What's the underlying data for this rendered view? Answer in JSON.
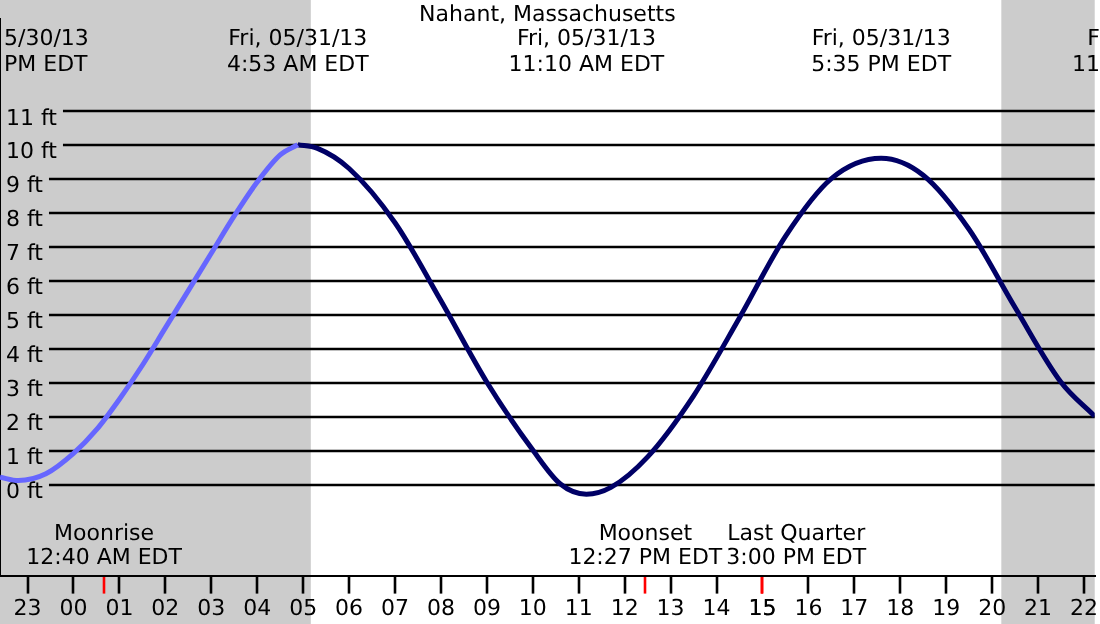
{
  "chart_data": {
    "type": "line",
    "title": "Nahant, Massachusetts",
    "series": [
      {
        "color": "#6666ff",
        "x": [
          "--05-30T22:24",
          "--05-30T22:48",
          "--05-30T23:24",
          "--05-31T00:00",
          "--05-31T00:30",
          "--05-31T01:00",
          "--05-31T01:30",
          "--05-31T02:00",
          "--05-31T02:30",
          "--05-31T03:00",
          "--05-31T03:30",
          "--05-31T04:00",
          "--05-31T04:30",
          "--05-31T04:53"
        ],
        "values": [
          0.2,
          0.1,
          0.3,
          0.9,
          1.6,
          2.5,
          3.5,
          4.6,
          5.7,
          6.8,
          7.9,
          8.9,
          9.7,
          10.0
        ]
      },
      {
        "color": "#000066",
        "x": [
          "--05-31T04:53",
          "--05-31T05:18",
          "--05-31T06:00",
          "--05-31T07:00",
          "--05-31T08:00",
          "--05-31T09:00",
          "--05-31T10:00",
          "--05-31T10:36",
          "--05-31T11:10",
          "--05-31T11:42",
          "--05-31T12:30",
          "--05-31T13:30",
          "--05-31T14:30",
          "--05-31T15:30",
          "--05-31T16:30",
          "--05-31T17:35",
          "--05-31T18:30",
          "--05-31T19:30",
          "--05-31T20:30",
          "--05-31T21:30",
          "--05-31T22:14"
        ],
        "values": [
          10.0,
          9.9,
          9.3,
          7.7,
          5.4,
          3.0,
          1.0,
          0.0,
          -0.3,
          -0.1,
          0.8,
          2.6,
          4.9,
          7.3,
          9.0,
          9.6,
          9.1,
          7.5,
          5.2,
          3.0,
          2.0
        ]
      }
    ],
    "xlim": [
      "--05-30T22:24",
      "--05-31T22:14"
    ],
    "ylim": [
      -2.7,
      13.7
    ],
    "xticks": [
      {
        "value": "--05-30T23:00",
        "label": "23"
      },
      {
        "value": "--05-31T00:00",
        "label": "00"
      },
      {
        "value": "--05-31T00:40",
        "label": null
      },
      {
        "value": "--05-31T01:00",
        "label": "01"
      },
      {
        "value": "--05-31T02:00",
        "label": "02"
      },
      {
        "value": "--05-31T03:00",
        "label": "03"
      },
      {
        "value": "--05-31T04:00",
        "label": "04"
      },
      {
        "value": "--05-31T05:00",
        "label": "05"
      },
      {
        "value": "--05-31T06:00",
        "label": "06"
      },
      {
        "value": "--05-31T07:00",
        "label": "07"
      },
      {
        "value": "--05-31T08:00",
        "label": "08"
      },
      {
        "value": "--05-31T09:00",
        "label": "09"
      },
      {
        "value": "--05-31T10:00",
        "label": "10"
      },
      {
        "value": "--05-31T11:00",
        "label": "11"
      },
      {
        "value": "--05-31T12:00",
        "label": "12"
      },
      {
        "value": "--05-31T12:27",
        "label": null
      },
      {
        "value": "--05-31T13:00",
        "label": "13"
      },
      {
        "value": "--05-31T14:00",
        "label": "14"
      },
      {
        "value": "--05-31T15:00",
        "label": "15"
      },
      {
        "value": "--05-31T15:00",
        "label": null
      },
      {
        "value": "--05-31T16:00",
        "label": "16"
      },
      {
        "value": "--05-31T17:00",
        "label": "17"
      },
      {
        "value": "--05-31T18:00",
        "label": "18"
      },
      {
        "value": "--05-31T19:00",
        "label": "19"
      },
      {
        "value": "--05-31T20:00",
        "label": "20"
      },
      {
        "value": "--05-31T21:00",
        "label": "21"
      },
      {
        "value": "--05-31T22:00",
        "label": "22"
      }
    ],
    "yticks": [
      {
        "value": 0,
        "label": "0 ft"
      },
      {
        "value": 1,
        "label": "1 ft"
      },
      {
        "value": 2,
        "label": "2 ft"
      },
      {
        "value": 3,
        "label": "3 ft"
      },
      {
        "value": 4,
        "label": "4 ft"
      },
      {
        "value": 5,
        "label": "5 ft"
      },
      {
        "value": 6,
        "label": "6 ft"
      },
      {
        "value": 7,
        "label": "7 ft"
      },
      {
        "value": 8,
        "label": "8 ft"
      },
      {
        "value": 9,
        "label": "9 ft"
      },
      {
        "value": 10,
        "label": "10 ft"
      },
      {
        "value": 11,
        "label": "11 ft"
      }
    ],
    "grid": "y",
    "legend": false,
    "marker": "none",
    "line_style": "solid",
    "bands": [
      {
        "axis": "x",
        "from": "--05-30T22:24",
        "to": "--05-31T05:10",
        "color": "#cccccc"
      },
      {
        "axis": "x",
        "from": "--05-31T20:12",
        "to": "--05-31T22:14",
        "color": "#cccccc"
      }
    ],
    "annotations": [
      "5/30/13\nPM EDT",
      "Fri, 05/31/13\n4:53 AM EDT",
      "Fri, 05/31/13\n11:10 AM EDT",
      "Fri, 05/31/13\n5:35 PM EDT",
      "F\n11",
      "Moonrise\n12:40 AM EDT",
      "Moonset\n12:27 PM EDT",
      "Last Quarter\n3:00 PM EDT"
    ]
  }
}
